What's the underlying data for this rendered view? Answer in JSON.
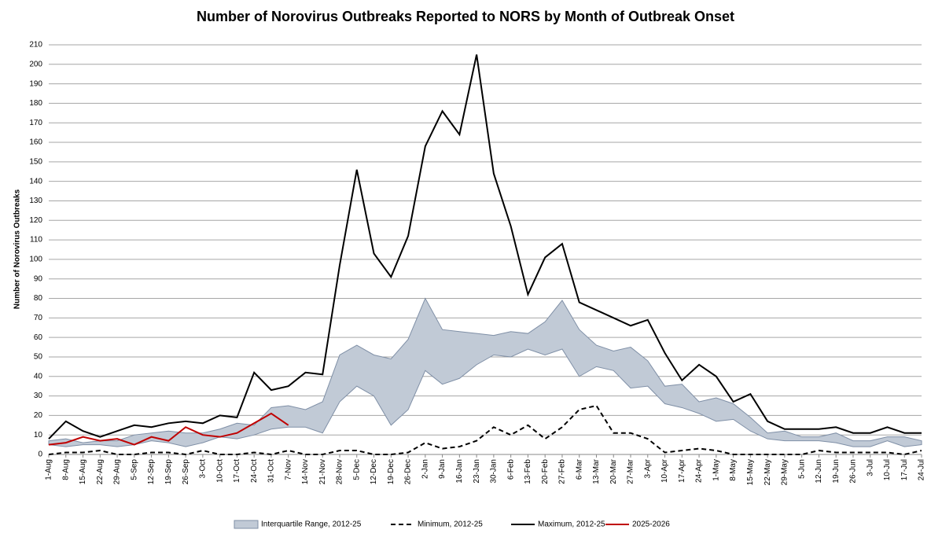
{
  "chart_data": {
    "type": "line",
    "title": "Number of Norovirus Outbreaks Reported to NORS by Month of Outbreak Onset",
    "y_label": "Number of Norovirus Outbreaks",
    "categories": [
      "1-Aug",
      "8-Aug",
      "15-Aug",
      "22-Aug",
      "29-Aug",
      "5-Sep",
      "12-Sep",
      "19-Sep",
      "26-Sep",
      "3-Oct",
      "10-Oct",
      "17-Oct",
      "24-Oct",
      "31-Oct",
      "7-Nov",
      "14-Nov",
      "21-Nov",
      "28-Nov",
      "5-Dec",
      "12-Dec",
      "19-Dec",
      "26-Dec",
      "2-Jan",
      "9-Jan",
      "16-Jan",
      "23-Jan",
      "30-Jan",
      "6-Feb",
      "13-Feb",
      "20-Feb",
      "27-Feb",
      "6-Mar",
      "13-Mar",
      "20-Mar",
      "27-Mar",
      "3-Apr",
      "10-Apr",
      "17-Apr",
      "24-Apr",
      "1-May",
      "8-May",
      "15-May",
      "22-May",
      "29-May",
      "5-Jun",
      "12-Jun",
      "19-Jun",
      "26-Jun",
      "3-Jul",
      "10-Jul",
      "17-Jul",
      "24-Jul"
    ],
    "ylim": [
      0,
      210
    ],
    "yticks": [
      0,
      10,
      20,
      30,
      40,
      50,
      60,
      70,
      80,
      90,
      100,
      110,
      120,
      130,
      140,
      150,
      160,
      170,
      180,
      190,
      200,
      210
    ],
    "grid": true,
    "band": {
      "name": "Interquartile Range, 2012-25",
      "color": "#c1cad6",
      "edge_color": "#7f8fa6",
      "upper": [
        7,
        8,
        6,
        7,
        7,
        10,
        11,
        12,
        11,
        11,
        13,
        16,
        15,
        24,
        25,
        23,
        27,
        51,
        56,
        51,
        49,
        59,
        80,
        64,
        63,
        62,
        61,
        63,
        62,
        68,
        79,
        64,
        56,
        53,
        55,
        48,
        35,
        36,
        27,
        29,
        26,
        19,
        11,
        12,
        9,
        9,
        11,
        7,
        7,
        9,
        9,
        7
      ],
      "lower": [
        5,
        4,
        5,
        5,
        4,
        5,
        7,
        6,
        4,
        6,
        9,
        8,
        10,
        13,
        14,
        14,
        11,
        27,
        35,
        30,
        15,
        23,
        43,
        36,
        39,
        46,
        51,
        50,
        54,
        51,
        54,
        40,
        45,
        43,
        34,
        35,
        26,
        24,
        21,
        17,
        18,
        12,
        8,
        7,
        7,
        7,
        6,
        4,
        4,
        7,
        4,
        5
      ]
    },
    "series": [
      {
        "name": "Minimum, 2012-25",
        "color": "#000000",
        "dashed": true,
        "values": [
          0,
          1,
          1,
          2,
          0,
          0,
          1,
          1,
          0,
          2,
          0,
          0,
          1,
          0,
          2,
          0,
          0,
          2,
          2,
          0,
          0,
          1,
          6,
          3,
          4,
          7,
          14,
          10,
          15,
          8,
          14,
          23,
          25,
          11,
          11,
          8,
          1,
          2,
          3,
          2,
          0,
          0,
          0,
          0,
          0,
          2,
          1,
          1,
          1,
          1,
          0,
          2
        ]
      },
      {
        "name": "Maximum, 2012-25",
        "color": "#000000",
        "dashed": false,
        "values": [
          8,
          17,
          12,
          9,
          12,
          15,
          14,
          16,
          17,
          16,
          20,
          19,
          42,
          33,
          35,
          42,
          41,
          97,
          146,
          103,
          91,
          112,
          158,
          176,
          164,
          205,
          144,
          117,
          82,
          101,
          108,
          78,
          74,
          70,
          66,
          69,
          52,
          38,
          46,
          40,
          27,
          31,
          17,
          13,
          13,
          13,
          14,
          11,
          11,
          14,
          11,
          11
        ]
      },
      {
        "name": "2025-2026",
        "color": "#c00000",
        "dashed": false,
        "values": [
          5,
          6,
          9,
          7,
          8,
          5,
          9,
          7,
          14,
          10,
          9,
          11,
          16,
          21,
          15,
          null,
          null,
          null,
          null,
          null,
          null,
          null,
          null,
          null,
          null,
          null,
          null,
          null,
          null,
          null,
          null,
          null,
          null,
          null,
          null,
          null,
          null,
          null,
          null,
          null,
          null,
          null,
          null,
          null,
          null,
          null,
          null,
          null,
          null,
          null,
          null,
          null
        ]
      }
    ]
  }
}
